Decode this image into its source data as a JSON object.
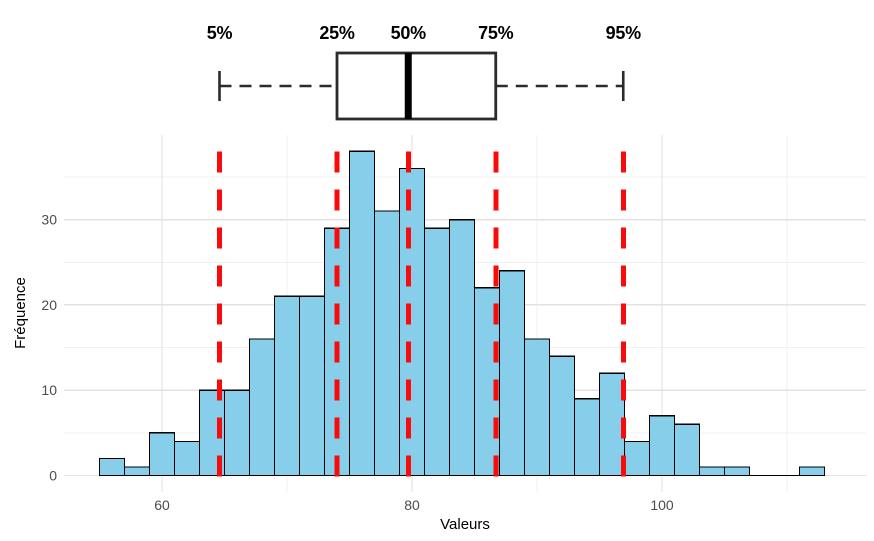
{
  "chart_data": {
    "type": "bar",
    "subtype": "histogram_with_boxplot",
    "title": "",
    "xlabel": "Valeurs",
    "ylabel": "Fréquence",
    "histogram": {
      "bin_start": 55,
      "bin_width": 2,
      "bin_edges": [
        55,
        57,
        59,
        61,
        63,
        65,
        67,
        69,
        71,
        73,
        75,
        77,
        79,
        81,
        83,
        85,
        87,
        89,
        91,
        93,
        95,
        97,
        99,
        101,
        103,
        105,
        107,
        109,
        111,
        113
      ],
      "counts": [
        2,
        1,
        5,
        4,
        10,
        10,
        16,
        21,
        21,
        29,
        38,
        31,
        36,
        29,
        30,
        22,
        24,
        16,
        14,
        9,
        12,
        4,
        7,
        6,
        1,
        1,
        0,
        0,
        1
      ]
    },
    "percentiles": [
      {
        "label": "5%",
        "value": 64.6
      },
      {
        "label": "25%",
        "value": 74.0
      },
      {
        "label": "50%",
        "value": 79.7
      },
      {
        "label": "75%",
        "value": 86.7
      },
      {
        "label": "95%",
        "value": 96.9
      }
    ],
    "boxplot": {
      "whisker_low": 64.6,
      "q1": 74.0,
      "median": 79.7,
      "q3": 86.7,
      "whisker_high": 96.9
    },
    "axes": {
      "x_tick_labels": [
        "60",
        "80",
        "100"
      ],
      "x_tick_values": [
        60,
        80,
        100
      ],
      "x_minor_values": [
        70,
        90,
        110
      ],
      "y_tick_labels": [
        "0",
        "10",
        "20",
        "30"
      ],
      "y_tick_values": [
        0,
        10,
        20,
        30
      ],
      "y_minor_values": [
        5,
        15,
        25,
        35
      ],
      "xlim": [
        52.16,
        116.32
      ],
      "ylim": [
        -1.93,
        39.92
      ],
      "grid": "on",
      "legend": "none"
    },
    "colors": {
      "bar_fill": "#87CEEB",
      "bar_stroke": "#000000",
      "percentile_line": "#FA0B0B",
      "grid_major": "#E2E2E2",
      "grid_minor": "#F0F0F0",
      "tick_label": "#4D4D4D",
      "axis_title": "#000000",
      "boxplot_stroke": "#2B2B2B",
      "boxplot_fill": "#FFFFFF",
      "background": "#FFFFFF"
    }
  }
}
